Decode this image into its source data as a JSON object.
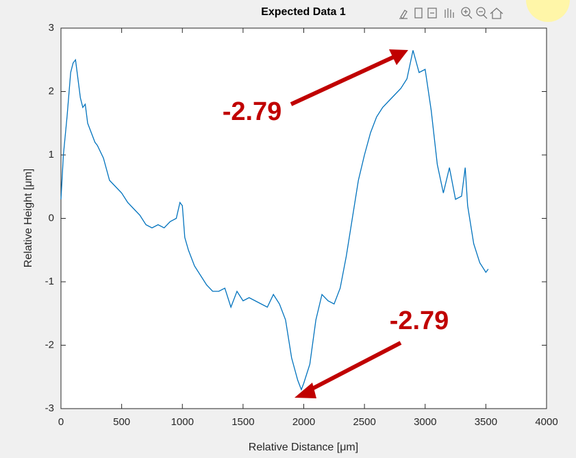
{
  "chart_data": {
    "type": "line",
    "title": "Expected Data 1",
    "x_label": "Relative Distance [μm]",
    "y_label": "Relative Height [μm]",
    "x": [
      0,
      20,
      50,
      80,
      100,
      120,
      140,
      160,
      180,
      200,
      220,
      250,
      280,
      300,
      350,
      400,
      450,
      500,
      550,
      600,
      650,
      700,
      750,
      800,
      850,
      900,
      950,
      980,
      1000,
      1020,
      1050,
      1100,
      1150,
      1200,
      1250,
      1300,
      1350,
      1400,
      1450,
      1500,
      1550,
      1600,
      1650,
      1700,
      1750,
      1800,
      1850,
      1900,
      1950,
      1980,
      2000,
      2050,
      2100,
      2150,
      2200,
      2250,
      2300,
      2350,
      2400,
      2450,
      2500,
      2550,
      2600,
      2650,
      2700,
      2750,
      2800,
      2850,
      2900,
      2950,
      3000,
      3050,
      3100,
      3150,
      3200,
      3250,
      3300,
      3330,
      3350,
      3400,
      3450,
      3500,
      3520
    ],
    "series": [
      {
        "name": "Expected Data 1",
        "color": "#0072bd",
        "values": [
          0.3,
          1.0,
          1.6,
          2.3,
          2.45,
          2.5,
          2.2,
          1.9,
          1.75,
          1.8,
          1.5,
          1.35,
          1.2,
          1.15,
          0.95,
          0.6,
          0.5,
          0.4,
          0.25,
          0.15,
          0.05,
          -0.1,
          -0.15,
          -0.1,
          -0.15,
          -0.05,
          0.0,
          0.25,
          0.2,
          -0.3,
          -0.5,
          -0.75,
          -0.9,
          -1.05,
          -1.15,
          -1.15,
          -1.1,
          -1.4,
          -1.15,
          -1.3,
          -1.25,
          -1.3,
          -1.35,
          -1.4,
          -1.2,
          -1.35,
          -1.6,
          -2.2,
          -2.55,
          -2.7,
          -2.6,
          -2.3,
          -1.6,
          -1.2,
          -1.3,
          -1.35,
          -1.1,
          -0.6,
          0.0,
          0.6,
          1.0,
          1.35,
          1.6,
          1.75,
          1.85,
          1.95,
          2.05,
          2.2,
          2.65,
          2.3,
          2.35,
          1.7,
          0.85,
          0.4,
          0.8,
          0.3,
          0.35,
          0.8,
          0.2,
          -0.4,
          -0.7,
          -0.85,
          -0.8
        ]
      }
    ],
    "xlim": [
      0,
      4000
    ],
    "xticks": [
      0,
      500,
      1000,
      1500,
      2000,
      2500,
      3000,
      3500,
      4000
    ],
    "ylim": [
      -3,
      3
    ],
    "yticks": [
      -3,
      -2,
      -1,
      0,
      1,
      2,
      3
    ],
    "annotations": [
      "-2.79",
      "-2.79"
    ]
  }
}
